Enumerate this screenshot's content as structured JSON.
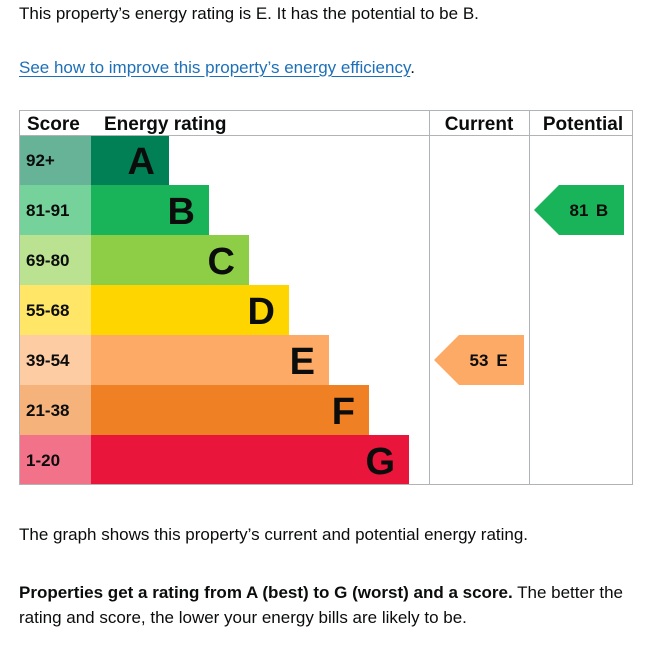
{
  "intro": "This property’s energy rating is E. It has the potential to be B.",
  "improve_link": {
    "text": "See how to improve this property’s energy efficiency",
    "after": "."
  },
  "chart_data": {
    "type": "bar",
    "headers": {
      "score": "Score",
      "rating": "Energy rating",
      "current": "Current",
      "potential": "Potential"
    },
    "bands": [
      {
        "score": "92+",
        "letter": "A",
        "length": 1,
        "color": "#008054",
        "score_bg": "#66b398"
      },
      {
        "score": "81-91",
        "letter": "B",
        "length": 2,
        "color": "#19b459",
        "score_bg": "#75d29b"
      },
      {
        "score": "69-80",
        "letter": "C",
        "length": 3,
        "color": "#8dce46",
        "score_bg": "#bbe290"
      },
      {
        "score": "55-68",
        "letter": "D",
        "length": 4,
        "color": "#ffd500",
        "score_bg": "#ffe666"
      },
      {
        "score": "39-54",
        "letter": "E",
        "length": 5,
        "color": "#fcaa65",
        "score_bg": "#fdcca3"
      },
      {
        "score": "21-38",
        "letter": "F",
        "length": 6,
        "color": "#ef8023",
        "score_bg": "#f5b37b"
      },
      {
        "score": "1-20",
        "letter": "G",
        "length": 7,
        "color": "#e9153b",
        "score_bg": "#f27389"
      }
    ],
    "current": {
      "value": 53,
      "band": "E",
      "color": "#fcaa65"
    },
    "potential": {
      "value": 81,
      "band": "B",
      "color": "#19b459"
    }
  },
  "footer": {
    "graph_note": "The graph shows this property’s current and potential energy rating.",
    "bold": "Properties get a rating from A (best) to G (worst) and a score.",
    "rest": " The better the rating and score, the lower your energy bills are likely to be."
  }
}
